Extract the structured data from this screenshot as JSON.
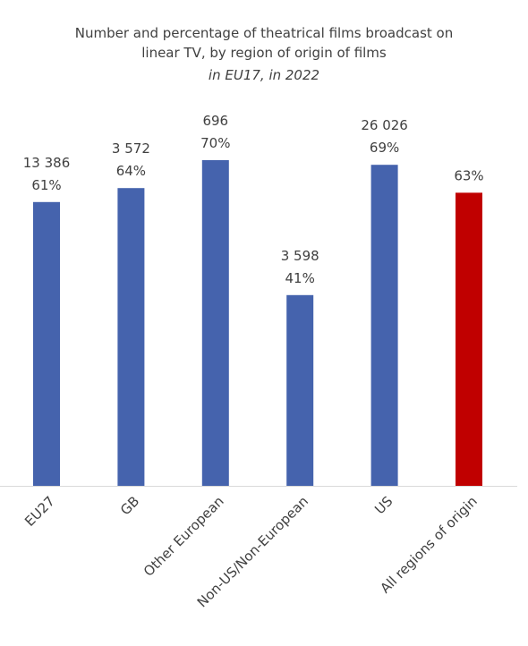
{
  "chart_data": {
    "type": "bar",
    "title_lines": [
      "Number and percentage of theatrical films broadcast on",
      "linear TV, by region of origin of films"
    ],
    "subtitle": "in EU17, in 2022",
    "categories": [
      "EU27",
      "GB",
      "Other European",
      "Non-US/Non-European",
      "US",
      "All regions of origin"
    ],
    "percentages": [
      61,
      64,
      70,
      41,
      69,
      63
    ],
    "counts": [
      "13 386",
      "3 572",
      "696",
      "3 598",
      "26 026",
      ""
    ],
    "bar_colors": [
      "#4563ad",
      "#4563ad",
      "#4563ad",
      "#4563ad",
      "#4563ad",
      "#c00000"
    ],
    "ylim": [
      0,
      100
    ],
    "grid": false,
    "legend": false,
    "xlabel": "",
    "ylabel": ""
  }
}
